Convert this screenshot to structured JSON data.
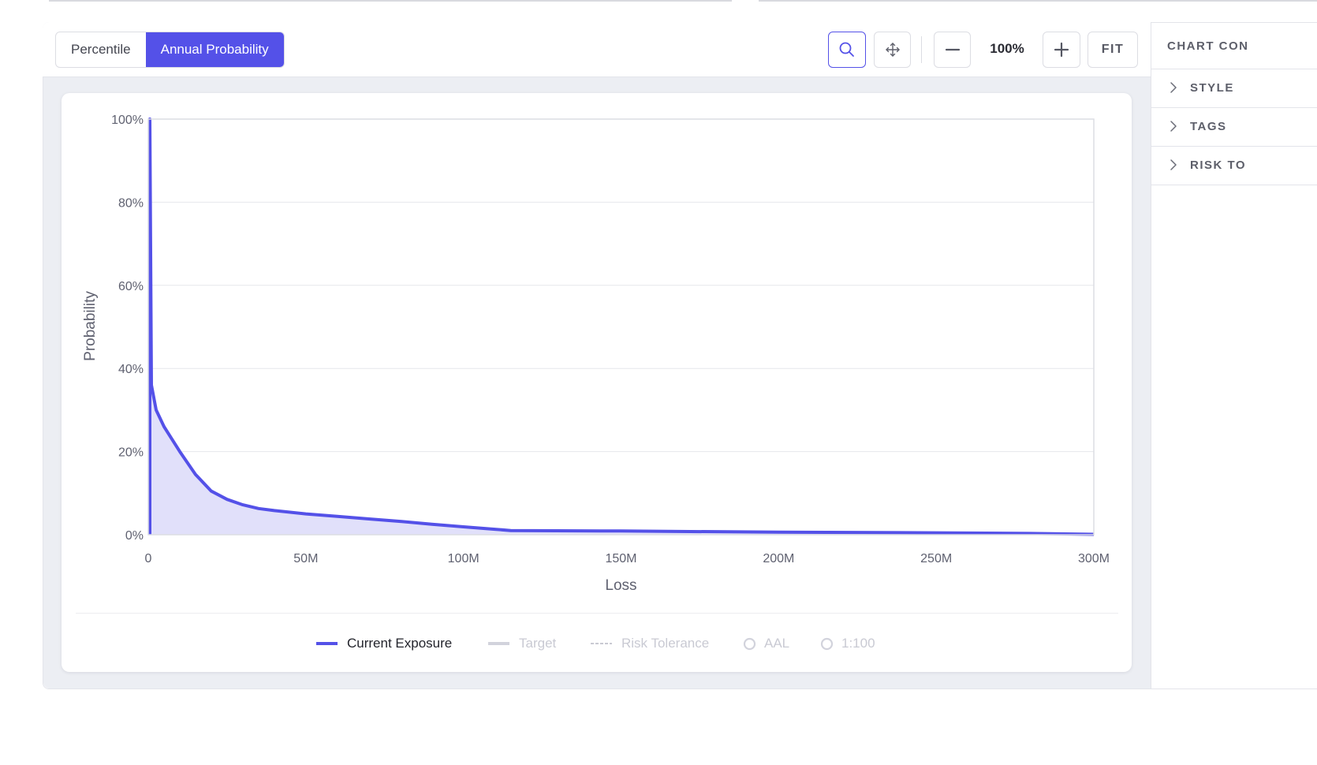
{
  "segmented": {
    "options": [
      "Percentile",
      "Annual Probability"
    ],
    "selected": "Annual Probability"
  },
  "toolbar": {
    "zoom_icon": "magnifier-icon",
    "pan_icon": "move-arrows-icon",
    "zoom_out_icon": "minus-icon",
    "zoom_level": "100%",
    "zoom_in_icon": "plus-icon",
    "fit_label": "FIT"
  },
  "sidebar": {
    "title": "CHART CON",
    "sections": [
      "STYLE",
      "TAGS",
      "RISK TO"
    ]
  },
  "legend": {
    "items": [
      {
        "label": "Current Exposure",
        "style": "line",
        "active": true
      },
      {
        "label": "Target",
        "style": "line",
        "active": false
      },
      {
        "label": "Risk Tolerance",
        "style": "dashed",
        "active": false
      },
      {
        "label": "AAL",
        "style": "circle",
        "active": false
      },
      {
        "label": "1:100",
        "style": "circle",
        "active": false
      }
    ]
  },
  "colors": {
    "accent": "#5451e8",
    "area_fill": "#e1e0fa",
    "grid": "#e6e7ec",
    "axis_text": "#5f6170"
  },
  "chart_data": {
    "type": "area",
    "xlabel": "Loss",
    "ylabel": "Probability",
    "xlim": [
      0,
      300000000
    ],
    "ylim": [
      0,
      100
    ],
    "x_ticks": [
      0,
      50000000,
      100000000,
      150000000,
      200000000,
      250000000,
      300000000
    ],
    "x_tick_labels": [
      "0",
      "50M",
      "100M",
      "150M",
      "200M",
      "250M",
      "300M"
    ],
    "y_ticks": [
      0,
      20,
      40,
      60,
      80,
      100
    ],
    "y_tick_labels": [
      "0%",
      "20%",
      "40%",
      "60%",
      "80%",
      "100%"
    ],
    "grid": true,
    "series": [
      {
        "name": "Current Exposure",
        "x": [
          0,
          500000,
          500000,
          1000000,
          2500000,
          5000000,
          7500000,
          10000000,
          15000000,
          20000000,
          25000000,
          30000000,
          35000000,
          40000000,
          50000000,
          60000000,
          70000000,
          80000000,
          90000000,
          100000000,
          110000000,
          115000000,
          150000000,
          200000000,
          250000000,
          280000000,
          300000000
        ],
        "y": [
          0,
          0,
          100,
          36,
          30,
          26,
          23,
          20,
          14.5,
          10.5,
          8.5,
          7.2,
          6.3,
          5.8,
          5.0,
          4.4,
          3.8,
          3.2,
          2.5,
          1.9,
          1.3,
          1.0,
          0.9,
          0.6,
          0.45,
          0.3,
          0.1
        ]
      }
    ]
  }
}
